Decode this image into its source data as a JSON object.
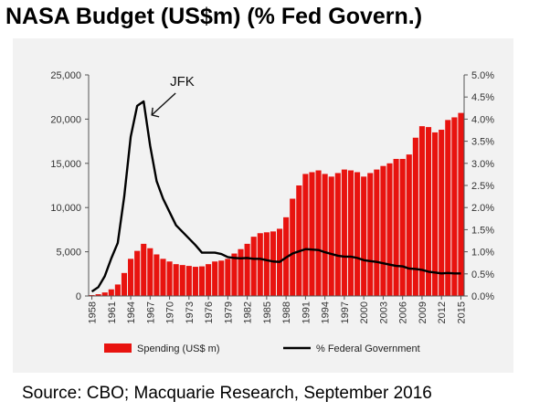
{
  "title": "NASA Budget (US$m) (% Fed Govern.)",
  "source": "Source: CBO; Macquarie Research, September 2016",
  "chart_data": {
    "type": "bar",
    "categories": [
      "1958",
      "1959",
      "1960",
      "1961",
      "1962",
      "1963",
      "1964",
      "1965",
      "1966",
      "1967",
      "1968",
      "1969",
      "1970",
      "1971",
      "1972",
      "1973",
      "1974",
      "1975",
      "1976",
      "1977",
      "1978",
      "1979",
      "1980",
      "1981",
      "1982",
      "1983",
      "1984",
      "1985",
      "1986",
      "1987",
      "1988",
      "1989",
      "1990",
      "1991",
      "1992",
      "1993",
      "1994",
      "1995",
      "1996",
      "1997",
      "1998",
      "1999",
      "2000",
      "2001",
      "2002",
      "2003",
      "2004",
      "2005",
      "2006",
      "2007",
      "2008",
      "2009",
      "2010",
      "2011",
      "2012",
      "2013",
      "2014",
      "2015"
    ],
    "x_tick_labels": [
      "1958",
      "1961",
      "1964",
      "1967",
      "1970",
      "1973",
      "1976",
      "1979",
      "1982",
      "1985",
      "1988",
      "1991",
      "1994",
      "1997",
      "2000",
      "2003",
      "2006",
      "2009",
      "2012",
      "2015"
    ],
    "series": [
      {
        "name": "Spending (US$ m)",
        "type": "bar",
        "axis": "left",
        "color": "#e8130f",
        "values": [
          100,
          200,
          400,
          750,
          1300,
          2600,
          4200,
          5100,
          5900,
          5400,
          4700,
          4200,
          3900,
          3600,
          3500,
          3400,
          3300,
          3350,
          3600,
          3900,
          4000,
          4200,
          4800,
          5300,
          5900,
          6700,
          7100,
          7200,
          7300,
          7600,
          8900,
          11000,
          12500,
          13800,
          14000,
          14200,
          13800,
          13500,
          13900,
          14300,
          14200,
          14000,
          13500,
          13900,
          14300,
          14700,
          15000,
          15500,
          15500,
          16000,
          17900,
          19200,
          19100,
          18500,
          18800,
          19900,
          20200,
          20700
        ]
      },
      {
        "name": "% Federal Government",
        "type": "line",
        "axis": "right",
        "color": "#000000",
        "values": [
          0.1,
          0.2,
          0.45,
          0.85,
          1.2,
          2.25,
          3.6,
          4.3,
          4.4,
          3.4,
          2.6,
          2.2,
          1.9,
          1.6,
          1.45,
          1.3,
          1.15,
          0.98,
          0.98,
          0.98,
          0.95,
          0.88,
          0.86,
          0.85,
          0.86,
          0.84,
          0.84,
          0.81,
          0.78,
          0.77,
          0.87,
          0.96,
          1.01,
          1.06,
          1.05,
          1.04,
          0.99,
          0.95,
          0.91,
          0.89,
          0.89,
          0.86,
          0.81,
          0.79,
          0.77,
          0.74,
          0.71,
          0.68,
          0.67,
          0.62,
          0.61,
          0.59,
          0.55,
          0.53,
          0.51,
          0.52,
          0.51,
          0.51
        ]
      }
    ],
    "y_left": {
      "ylim": [
        0,
        25000
      ],
      "ticks": [
        "0",
        "5,000",
        "10,000",
        "15,000",
        "20,000",
        "25,000"
      ]
    },
    "y_right": {
      "ylim": [
        0,
        5.0
      ],
      "ticks": [
        "0.0%",
        "0.5%",
        "1.0%",
        "1.5%",
        "2.0%",
        "2.5%",
        "3.0%",
        "3.5%",
        "4.0%",
        "4.5%",
        "5.0%"
      ]
    },
    "annotation": {
      "text": "JFK",
      "category": "1965"
    },
    "legend": {
      "placement": "bottom",
      "items": [
        "Spending (US$ m)",
        "% Federal Government"
      ]
    },
    "grid": false
  }
}
